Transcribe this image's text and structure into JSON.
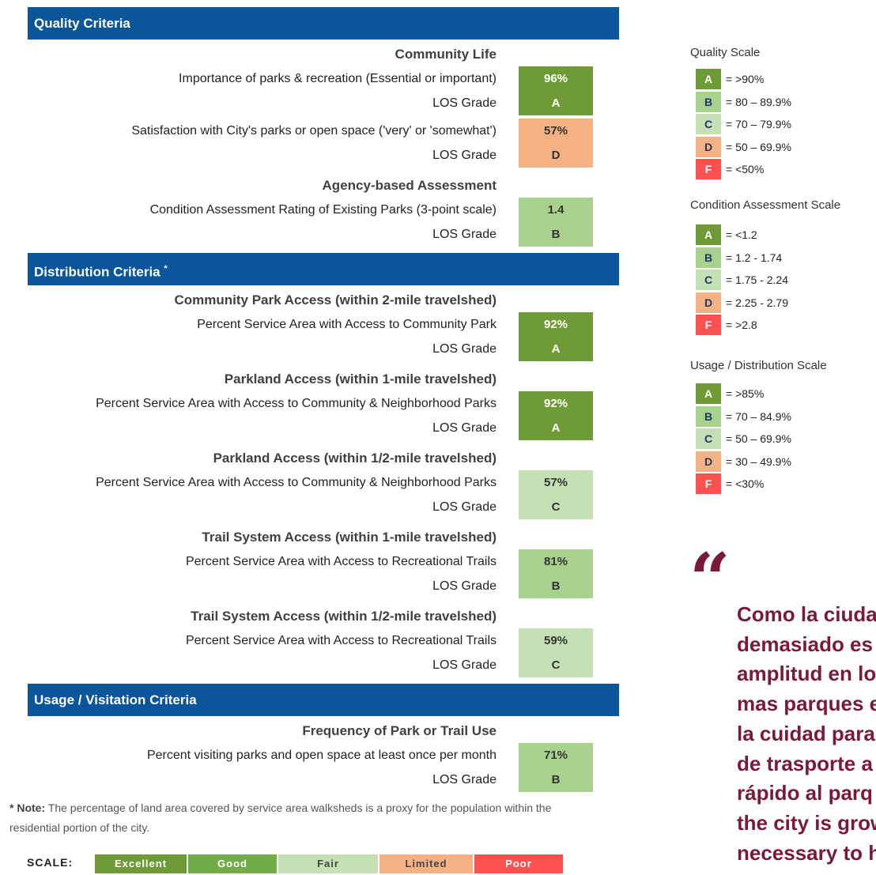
{
  "sections": [
    {
      "title": "Quality Criteria",
      "groups": [
        {
          "heading": "Community Life",
          "rows": [
            {
              "label": "Importance of parks & recreation (Essential or important)",
              "value": "96%",
              "grade_label": "LOS Grade",
              "grade": "A",
              "color": "#6e9b35",
              "text_color": "#ffffff"
            },
            {
              "label": "Satisfaction with City's parks or open space ('very' or 'somewhat')",
              "value": "57%",
              "grade_label": "LOS Grade",
              "grade": "D",
              "color": "#f4b183",
              "text_color": "#333333"
            }
          ]
        },
        {
          "heading": "Agency-based Assessment",
          "rows": [
            {
              "label": "Condition Assessment Rating of Existing Parks (3-point scale)",
              "value": "1.4",
              "grade_label": "LOS Grade",
              "grade": "B",
              "color": "#a9d18e",
              "text_color": "#333333"
            }
          ]
        }
      ]
    },
    {
      "title": "Distribution Criteria",
      "title_mark": "*",
      "groups": [
        {
          "heading": "Community Park Access (within 2-mile travelshed)",
          "rows": [
            {
              "label": "Percent Service Area with Access to Community Park",
              "value": "92%",
              "grade_label": "LOS Grade",
              "grade": "A",
              "color": "#6e9b35",
              "text_color": "#ffffff"
            }
          ]
        },
        {
          "heading": "Parkland Access (within 1-mile travelshed)",
          "rows": [
            {
              "label": "Percent Service Area with Access to Community & Neighborhood Parks",
              "value": "92%",
              "grade_label": "LOS Grade",
              "grade": "A",
              "color": "#6e9b35",
              "text_color": "#ffffff"
            }
          ]
        },
        {
          "heading": "Parkland Access (within 1/2-mile travelshed)",
          "rows": [
            {
              "label": "Percent Service Area with Access to Community & Neighborhood Parks",
              "value": "57%",
              "grade_label": "LOS Grade",
              "grade": "C",
              "color": "#c5e0b4",
              "text_color": "#333333"
            }
          ]
        },
        {
          "heading": "Trail System Access (within 1-mile travelshed)",
          "rows": [
            {
              "label": "Percent Service Area with Access to Recreational Trails",
              "value": "81%",
              "grade_label": "LOS Grade",
              "grade": "B",
              "color": "#a9d18e",
              "text_color": "#333333"
            }
          ]
        },
        {
          "heading": "Trail System Access (within 1/2-mile travelshed)",
          "rows": [
            {
              "label": "Percent Service Area with Access to Recreational Trails",
              "value": "59%",
              "grade_label": "LOS Grade",
              "grade": "C",
              "color": "#c5e0b4",
              "text_color": "#333333"
            }
          ]
        }
      ]
    },
    {
      "title": "Usage / Visitation Criteria",
      "groups": [
        {
          "heading": "Frequency of Park or Trail Use",
          "rows": [
            {
              "label": "Percent visiting parks and open space at least once per month",
              "value": "71%",
              "grade_label": "LOS Grade",
              "grade": "B",
              "color": "#a9d18e",
              "text_color": "#333333"
            }
          ]
        }
      ]
    }
  ],
  "note": {
    "label": "* Note:",
    "text": "The percentage of land area covered by service area walksheds is a proxy for the population within the residential portion of the city."
  },
  "scale_bar": {
    "label": "SCALE:",
    "items": [
      {
        "name": "Excellent",
        "color": "#6e9b35",
        "text_color": "#ffffff"
      },
      {
        "name": "Good",
        "color": "#70ad47",
        "text_color": "#ffffff"
      },
      {
        "name": "Fair",
        "color": "#c5e0b4",
        "text_color": "#444444"
      },
      {
        "name": "Limited",
        "color": "#f4b183",
        "text_color": "#444444"
      },
      {
        "name": "Poor",
        "color": "#ff5050",
        "text_color": "#ffffff"
      }
    ]
  },
  "scales": [
    {
      "title": "Quality Scale",
      "items": [
        {
          "grade": "A",
          "range": "= >90%",
          "color": "#6e9b35",
          "text_color": "#ffffff"
        },
        {
          "grade": "B",
          "range": "= 80 – 89.9%",
          "color": "#a9d18e",
          "text_color": "#1f3864"
        },
        {
          "grade": "C",
          "range": "= 70 – 79.9%",
          "color": "#c5e0b4",
          "text_color": "#1f3864"
        },
        {
          "grade": "D",
          "range": "= 50 – 69.9%",
          "color": "#f4b183",
          "text_color": "#1f3864"
        },
        {
          "grade": "F",
          "range": "= <50%",
          "color": "#ff5050",
          "text_color": "#ffffff"
        }
      ]
    },
    {
      "title": "Condition Assessment Scale",
      "items": [
        {
          "grade": "A",
          "range": "= <1.2",
          "color": "#6e9b35",
          "text_color": "#ffffff"
        },
        {
          "grade": "B",
          "range": "= 1.2 - 1.74",
          "color": "#a9d18e",
          "text_color": "#1f3864"
        },
        {
          "grade": "C",
          "range": "= 1.75 - 2.24",
          "color": "#c5e0b4",
          "text_color": "#1f3864"
        },
        {
          "grade": "D",
          "range": "= 2.25 - 2.79",
          "color": "#f4b183",
          "text_color": "#1f3864"
        },
        {
          "grade": "F",
          "range": "= >2.8",
          "color": "#ff5050",
          "text_color": "#ffffff"
        }
      ]
    },
    {
      "title": "Usage / Distribution Scale",
      "items": [
        {
          "grade": "A",
          "range": "= >85%",
          "color": "#6e9b35",
          "text_color": "#ffffff"
        },
        {
          "grade": "B",
          "range": "= 70 – 84.9%",
          "color": "#a9d18e",
          "text_color": "#1f3864"
        },
        {
          "grade": "C",
          "range": "= 50 – 69.9%",
          "color": "#c5e0b4",
          "text_color": "#1f3864"
        },
        {
          "grade": "D",
          "range": "= 30 – 49.9%",
          "color": "#f4b183",
          "text_color": "#1f3864"
        },
        {
          "grade": "F",
          "range": "= <30%",
          "color": "#ff5050",
          "text_color": "#ffffff"
        }
      ]
    }
  ],
  "quote": {
    "mark": "“",
    "lines": [
      "Como la ciuda",
      "demasiado es",
      "amplitud en lo",
      "mas parques e",
      "la cuidad para",
      "de trasporte a",
      "rápido al parq",
      "the city is grow",
      "necessary to h"
    ]
  }
}
